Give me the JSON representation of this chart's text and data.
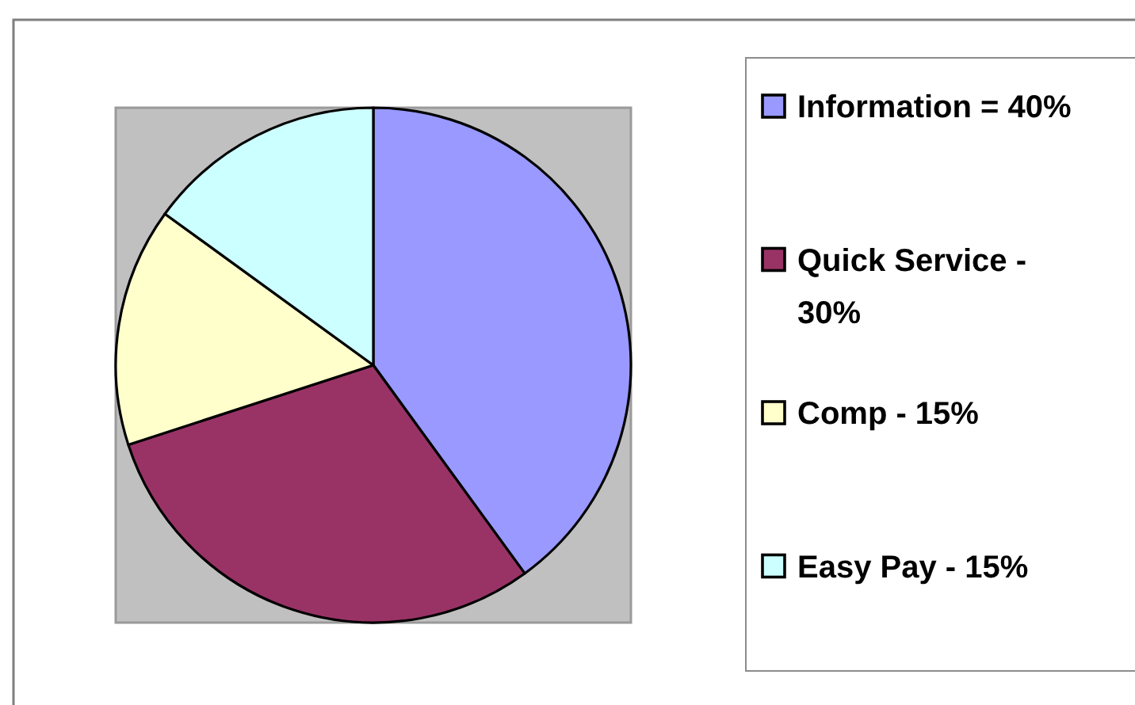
{
  "chart_data": {
    "type": "pie",
    "categories": [
      "Information = 40%",
      "Quick Service - 30%",
      "Comp - 15%",
      "Easy Pay - 15%"
    ],
    "values": [
      40,
      30,
      15,
      15
    ],
    "colors": [
      "#9999ff",
      "#993366",
      "#ffffcc",
      "#ccffff"
    ],
    "legend": "right"
  }
}
